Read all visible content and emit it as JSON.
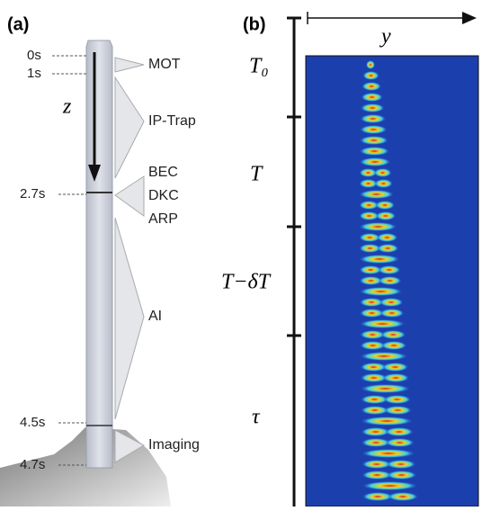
{
  "panel_a": {
    "label": "(a)",
    "axis_label": "z",
    "times": [
      "0s",
      "1s",
      "2.7s",
      "4.5s",
      "4.7s"
    ],
    "stages": [
      "MOT",
      "IP-Trap",
      "BEC",
      "DKC",
      "ARP",
      "AI",
      "Imaging"
    ]
  },
  "panel_b": {
    "label": "(b)",
    "axis_label": "y",
    "time_labels": [
      "T₀",
      "T",
      "T−δT",
      "τ"
    ]
  }
}
